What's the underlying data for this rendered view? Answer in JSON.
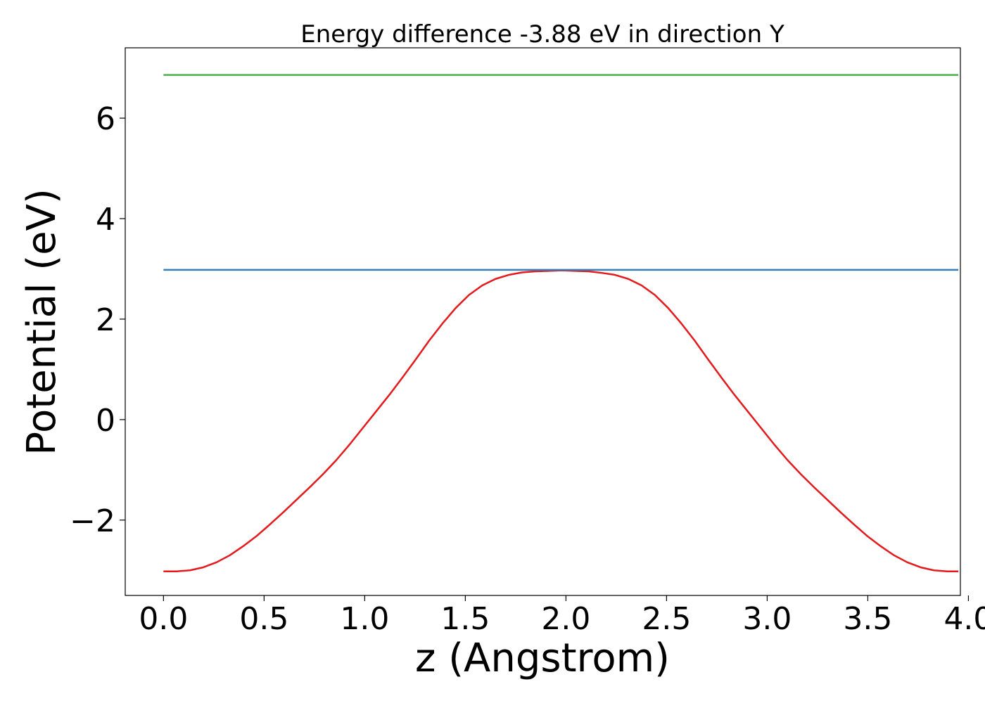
{
  "chart_data": {
    "type": "line",
    "title": "Energy difference -3.88 eV in direction Y",
    "xlabel": "z (Angstrom)",
    "ylabel": "Potential (eV)",
    "xlim": [
      -0.19,
      3.96
    ],
    "ylim": [
      -3.5,
      7.4
    ],
    "xticks": [
      0.0,
      0.5,
      1.0,
      1.5,
      2.0,
      2.5,
      3.0,
      3.5,
      4.0
    ],
    "xtick_labels": [
      "0.0",
      "0.5",
      "1.0",
      "1.5",
      "2.0",
      "2.5",
      "3.0",
      "3.5",
      "4.0"
    ],
    "yticks": [
      -2,
      0,
      2,
      4,
      6
    ],
    "ytick_labels": [
      "−2",
      "0",
      "2",
      "4",
      "6"
    ],
    "grid": false,
    "legend": "none",
    "series": [
      {
        "color": "#e41a1c",
        "x": [
          0.0,
          0.066,
          0.132,
          0.198,
          0.264,
          0.33,
          0.396,
          0.462,
          0.528,
          0.594,
          0.66,
          0.726,
          0.792,
          0.858,
          0.924,
          0.99,
          1.056,
          1.122,
          1.188,
          1.254,
          1.32,
          1.386,
          1.452,
          1.518,
          1.584,
          1.65,
          1.716,
          1.782,
          1.848,
          1.914,
          1.98,
          2.046,
          2.112,
          2.178,
          2.244,
          2.31,
          2.376,
          2.442,
          2.508,
          2.574,
          2.64,
          2.706,
          2.772,
          2.838,
          2.904,
          2.97,
          3.036,
          3.102,
          3.168,
          3.234,
          3.3,
          3.366,
          3.432,
          3.498,
          3.564,
          3.63,
          3.696,
          3.762,
          3.828,
          3.894,
          3.95
        ],
        "y": [
          -3.02,
          -3.02,
          -3.0,
          -2.94,
          -2.84,
          -2.7,
          -2.52,
          -2.32,
          -2.09,
          -1.85,
          -1.6,
          -1.35,
          -1.09,
          -0.81,
          -0.5,
          -0.17,
          0.16,
          0.49,
          0.84,
          1.2,
          1.57,
          1.91,
          2.22,
          2.48,
          2.67,
          2.8,
          2.88,
          2.93,
          2.95,
          2.96,
          2.97,
          2.96,
          2.95,
          2.92,
          2.88,
          2.8,
          2.67,
          2.48,
          2.22,
          1.91,
          1.57,
          1.2,
          0.84,
          0.49,
          0.16,
          -0.17,
          -0.5,
          -0.81,
          -1.09,
          -1.35,
          -1.6,
          -1.85,
          -2.09,
          -2.32,
          -2.52,
          -2.7,
          -2.84,
          -2.94,
          -3.0,
          -3.02,
          -3.02
        ]
      },
      {
        "color": "#377eb8",
        "x": [
          0.0,
          3.95
        ],
        "y": [
          2.98,
          2.98
        ]
      },
      {
        "color": "#4daf4a",
        "x": [
          0.0,
          3.95
        ],
        "y": [
          6.86,
          6.86
        ]
      }
    ]
  }
}
